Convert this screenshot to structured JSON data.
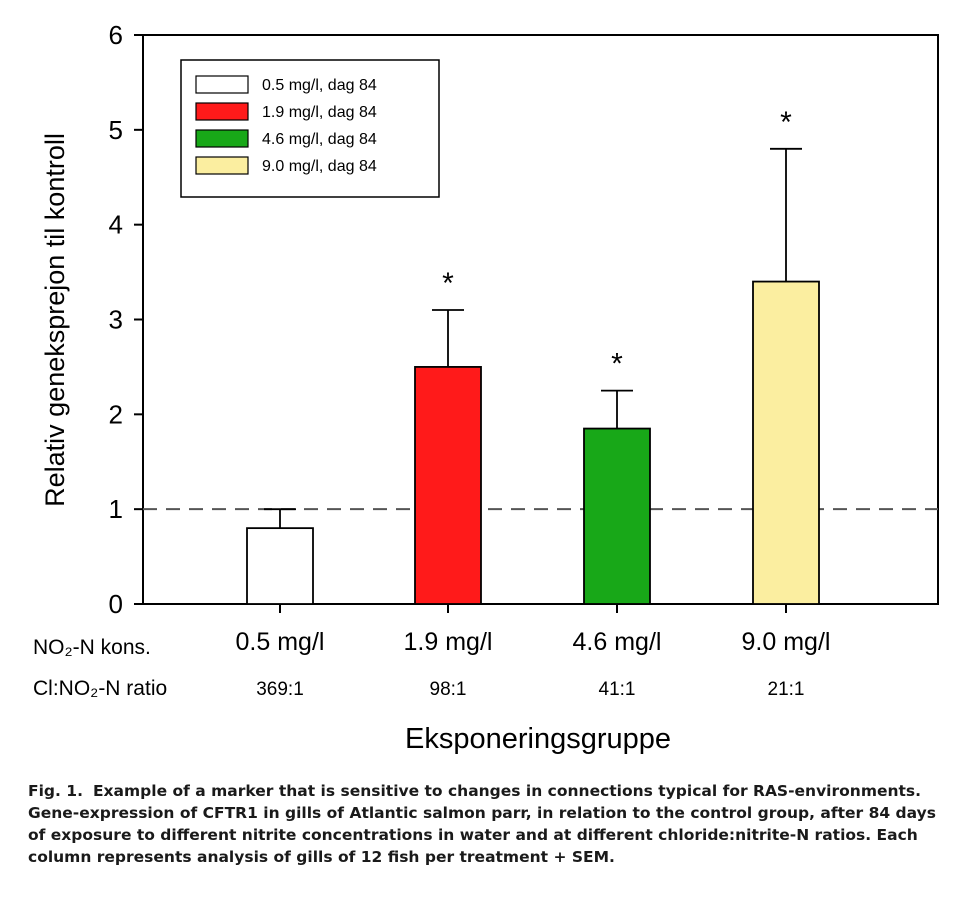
{
  "chart_data": {
    "type": "bar",
    "ylabel": "Relativ geneksprejon til kontroll",
    "xlabel": "Eksponeringsgruppe",
    "ylim": [
      0,
      6
    ],
    "yticks": [
      "0",
      "1",
      "2",
      "3",
      "4",
      "5",
      "6"
    ],
    "categories": [
      "0.5 mg/l",
      "1.9 mg/l",
      "4.6 mg/l",
      "9.0 mg/l"
    ],
    "values": [
      0.8,
      2.5,
      1.85,
      3.4
    ],
    "sem": [
      0.2,
      0.6,
      0.4,
      1.4
    ],
    "significance": [
      "",
      "*",
      "*",
      "*"
    ],
    "colors": [
      "#ffffff",
      "#ff1a1a",
      "#18a818",
      "#fbeea0"
    ],
    "reference_line": 1,
    "legend": {
      "position": "top-left",
      "entries": [
        "0.5 mg/l, dag 84",
        "1.9 mg/l, dag 84",
        "4.6 mg/l, dag 84",
        "9.0 mg/l, dag 84"
      ]
    },
    "row_labels": {
      "conc_label": "NO₂-N kons.",
      "ratio_label": "Cl:NO₂-N ratio"
    },
    "ratios": [
      "369:1",
      "98:1",
      "41:1",
      "21:1"
    ]
  },
  "caption": {
    "label": "Fig. 1.",
    "text": "Example of a marker that is sensitive to changes in connections typical for RAS-environments. Gene-expression of CFTR1 in gills of Atlantic salmon parr, in relation to the control group, after 84 days of exposure to different nitrite concentrations in water and at different chloride:nitrite-N ratios.  Each column represents analysis of gills of 12 fish per treatment + SEM."
  }
}
